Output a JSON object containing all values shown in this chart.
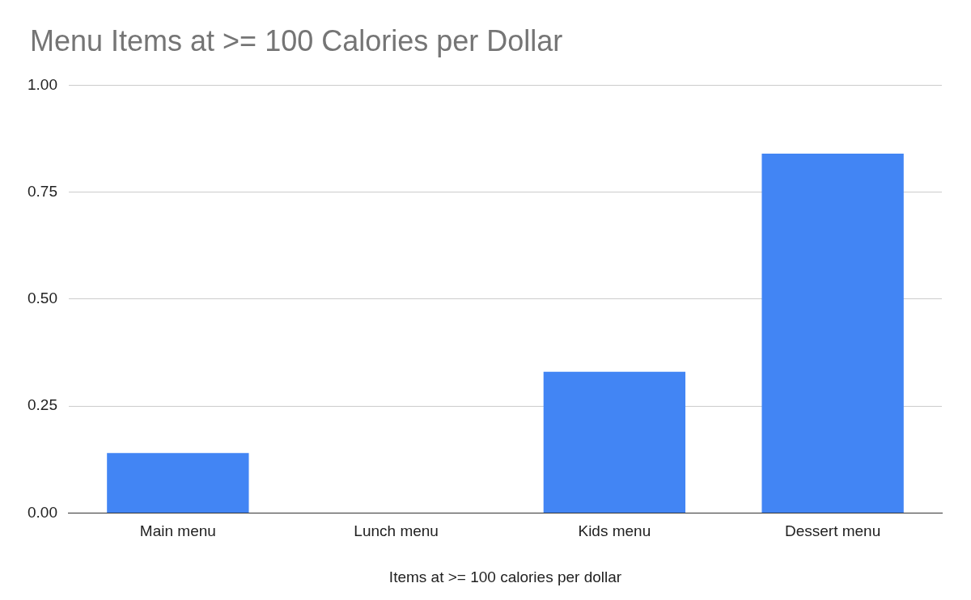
{
  "chart_data": {
    "type": "bar",
    "title": "Menu Items at >= 100 Calories per Dollar",
    "xlabel": "Items at >= 100 calories per dollar",
    "categories": [
      "Main menu",
      "Lunch menu",
      "Kids menu",
      "Dessert menu"
    ],
    "values": [
      0.14,
      0,
      0.33,
      0.84
    ],
    "color": "#4285f4",
    "ylim": [
      0,
      1
    ],
    "yticks": [
      {
        "value": 0,
        "label": "0.00"
      },
      {
        "value": 0.25,
        "label": "0.25"
      },
      {
        "value": 0.5,
        "label": "0.50"
      },
      {
        "value": 0.75,
        "label": "0.75"
      },
      {
        "value": 1,
        "label": "1.00"
      }
    ],
    "grid": "y",
    "legend": false
  }
}
